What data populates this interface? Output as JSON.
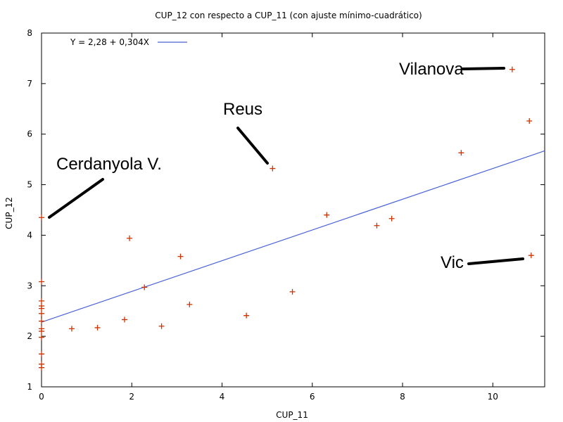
{
  "chart_data": {
    "type": "scatter",
    "title": "CUP_12 con respecto a CUP_11 (con ajuste mínimo-cuadrático)",
    "xlabel": "CUP_11",
    "ylabel": "CUP_12",
    "xlim": [
      0,
      11.15
    ],
    "ylim": [
      1,
      8
    ],
    "xticks": [
      0,
      2,
      4,
      6,
      8,
      10
    ],
    "yticks": [
      1,
      2,
      3,
      4,
      5,
      6,
      7,
      8
    ],
    "grid": false,
    "legend": "top-left",
    "series": [
      {
        "name": "",
        "kind": "points",
        "color": "#cc3300",
        "x": [
          0.0,
          0.0,
          0.0,
          0.0,
          0.0,
          0.0,
          0.0,
          0.0,
          0.0,
          0.0,
          0.0,
          0.0,
          0.0,
          0.67,
          1.24,
          1.84,
          1.95,
          2.28,
          2.66,
          3.08,
          3.28,
          4.54,
          5.12,
          5.56,
          6.32,
          7.43,
          7.76,
          9.3,
          10.43,
          10.81,
          10.85
        ],
        "y": [
          4.35,
          3.08,
          2.7,
          2.55,
          2.45,
          2.3,
          2.15,
          2.1,
          1.98,
          1.65,
          1.45,
          1.38,
          2.6,
          2.15,
          2.17,
          2.33,
          3.94,
          2.97,
          2.2,
          3.58,
          2.63,
          2.41,
          5.32,
          2.88,
          4.4,
          4.19,
          4.33,
          5.63,
          7.28,
          6.26,
          3.6
        ]
      },
      {
        "name": "Y = 2,28 + 0,304X",
        "kind": "fit-line",
        "color": "#4a62d8",
        "intercept": 2.28,
        "slope": 0.304
      }
    ],
    "annotations": [
      {
        "text": "Cerdanyola V.",
        "x": 0.18,
        "y": 4.37
      },
      {
        "text": "Reus",
        "x": 5.0,
        "y": 5.42
      },
      {
        "text": "Vilanova",
        "x": 10.2,
        "y": 7.3
      },
      {
        "text": "Vic",
        "x": 10.65,
        "y": 3.55
      }
    ]
  }
}
